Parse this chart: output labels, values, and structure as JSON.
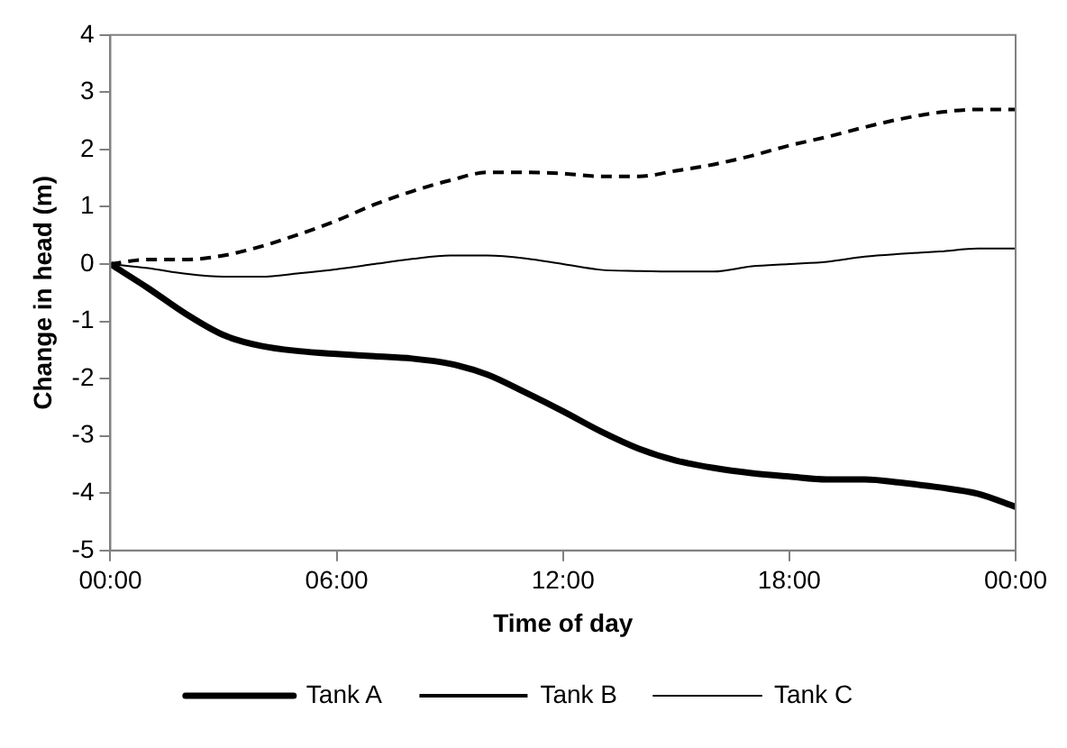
{
  "chart_data": {
    "type": "line",
    "xlabel": "Time of day",
    "ylabel": "Change in head (m)",
    "x": [
      0,
      1,
      2,
      3,
      4,
      5,
      6,
      7,
      8,
      9,
      10,
      11,
      12,
      13,
      14,
      15,
      16,
      17,
      18,
      19,
      20,
      21,
      22,
      23,
      24
    ],
    "series": [
      {
        "name": "Tank A",
        "color": "#000000",
        "line_style": "solid",
        "values": [
          0,
          -0.42,
          -0.87,
          -1.24,
          -1.43,
          -1.52,
          -1.57,
          -1.61,
          -1.65,
          -1.74,
          -1.93,
          -2.24,
          -2.57,
          -2.92,
          -3.22,
          -3.43,
          -3.56,
          -3.65,
          -3.71,
          -3.76,
          -3.76,
          -3.82,
          -3.9,
          -4.01,
          -4.24
        ]
      },
      {
        "name": "Tank B",
        "color": "#000000",
        "line_style": "dashed",
        "values": [
          0,
          0.08,
          0.08,
          0.15,
          0.31,
          0.52,
          0.76,
          1.04,
          1.27,
          1.46,
          1.6,
          1.6,
          1.58,
          1.53,
          1.53,
          1.63,
          1.74,
          1.89,
          2.07,
          2.22,
          2.39,
          2.54,
          2.65,
          2.7,
          2.7
        ]
      },
      {
        "name": "Tank C",
        "color": "#000000",
        "line_style": "solid",
        "values": [
          0,
          -0.07,
          -0.17,
          -0.22,
          -0.22,
          -0.16,
          -0.09,
          0,
          0.09,
          0.15,
          0.15,
          0.1,
          0,
          -0.1,
          -0.12,
          -0.13,
          -0.13,
          -0.04,
          0,
          0.04,
          0.13,
          0.18,
          0.22,
          0.27,
          0.27
        ]
      }
    ],
    "xlim": [
      0,
      24
    ],
    "xticks": [
      {
        "value": 0,
        "label": "00:00"
      },
      {
        "value": 6,
        "label": "06:00"
      },
      {
        "value": 12,
        "label": "12:00"
      },
      {
        "value": 18,
        "label": "18:00"
      },
      {
        "value": 24,
        "label": "00:00"
      }
    ],
    "ylim": [
      -5,
      4
    ],
    "yticks": [
      -5,
      -4,
      -3,
      -2,
      -1,
      0,
      1,
      2,
      3,
      4
    ],
    "grid": false,
    "legend": "bottom",
    "marker": "none"
  }
}
